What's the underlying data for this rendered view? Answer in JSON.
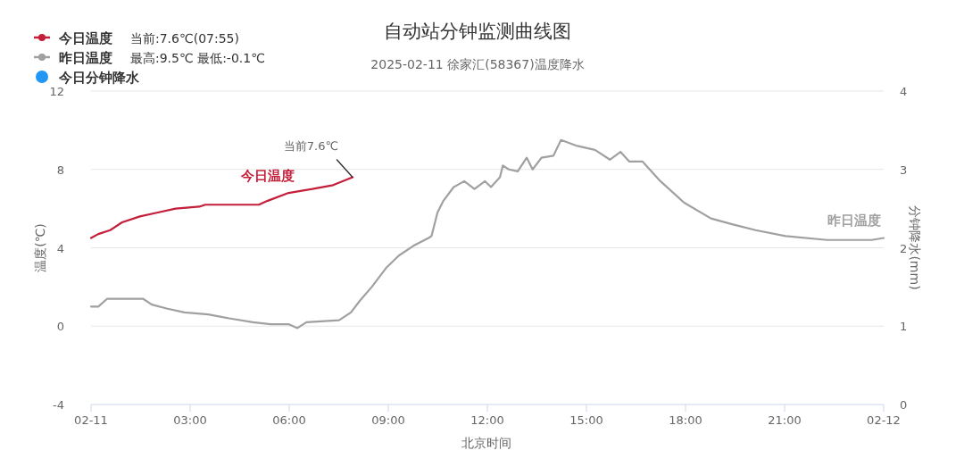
{
  "chart_data": {
    "type": "line",
    "title": "自动站分钟监测曲线图",
    "subtitle": "2025-02-11 徐家汇(58367)温度降水",
    "xlabel": "北京时间",
    "ylabel": "温度(℃)",
    "y2label": "分钟降水(mm)",
    "xlim": [
      0,
      24
    ],
    "xticks": [
      {
        "value": 0,
        "label": "02-11"
      },
      {
        "value": 3,
        "label": "03:00"
      },
      {
        "value": 6,
        "label": "06:00"
      },
      {
        "value": 9,
        "label": "09:00"
      },
      {
        "value": 12,
        "label": "12:00"
      },
      {
        "value": 15,
        "label": "15:00"
      },
      {
        "value": 18,
        "label": "18:00"
      },
      {
        "value": 21,
        "label": "21:00"
      },
      {
        "value": 24,
        "label": "02-12"
      }
    ],
    "ylim": [
      -4,
      12
    ],
    "yticks": [
      -4,
      0,
      4,
      8,
      12
    ],
    "y2lim": [
      0,
      4
    ],
    "y2ticks": [
      0,
      1,
      2,
      3,
      4
    ],
    "grid": "y",
    "legend": "top left",
    "annotations": [
      "当前:7.6℃(07:55)",
      "最高:9.5℃ 最低:-0.1℃",
      {
        "text": "当前7.6℃",
        "x": 7.92,
        "y": 7.6
      }
    ],
    "series": [
      {
        "name": "今日温度",
        "color": "#c41e3a",
        "x": [
          0,
          0.22,
          0.58,
          0.94,
          1.48,
          2.02,
          2.56,
          3.28,
          3.46,
          5.08,
          5.35,
          5.98,
          6.7,
          7.33,
          7.92
        ],
        "values": [
          4.5,
          4.7,
          4.9,
          5.3,
          5.6,
          5.8,
          6.0,
          6.1,
          6.2,
          6.2,
          6.4,
          6.8,
          7.0,
          7.2,
          7.6
        ]
      },
      {
        "name": "昨日温度",
        "color": "#a0a0a0",
        "x": [
          0,
          0.22,
          0.49,
          1.57,
          1.84,
          2.29,
          2.83,
          3.55,
          4.18,
          4.9,
          5.44,
          5.98,
          6.25,
          6.52,
          7.51,
          7.87,
          8.14,
          8.5,
          8.95,
          9.32,
          9.76,
          10.22,
          10.31,
          10.49,
          10.67,
          10.98,
          11.3,
          11.61,
          11.93,
          12.11,
          12.38,
          12.47,
          12.65,
          12.92,
          13.19,
          13.37,
          13.64,
          14.0,
          14.23,
          14.72,
          15.26,
          15.71,
          16.03,
          16.3,
          16.7,
          17.24,
          17.96,
          18.77,
          19.41,
          20.12,
          21.03,
          22.29,
          23.64,
          24
        ],
        "values": [
          1.0,
          1.0,
          1.4,
          1.4,
          1.1,
          0.9,
          0.7,
          0.6,
          0.4,
          0.2,
          0.1,
          0.1,
          -0.1,
          0.2,
          0.3,
          0.7,
          1.3,
          2.0,
          3.0,
          3.6,
          4.1,
          4.5,
          4.6,
          5.8,
          6.4,
          7.1,
          7.4,
          7.0,
          7.4,
          7.1,
          7.6,
          8.2,
          8.0,
          7.9,
          8.6,
          8.0,
          8.6,
          8.7,
          9.5,
          9.2,
          9.0,
          8.5,
          8.9,
          8.4,
          8.4,
          7.4,
          6.3,
          5.5,
          5.2,
          4.9,
          4.6,
          4.4,
          4.4,
          4.5
        ]
      },
      {
        "name": "今日分钟降水",
        "color": "#2196f3",
        "type": "bar"
      }
    ]
  }
}
